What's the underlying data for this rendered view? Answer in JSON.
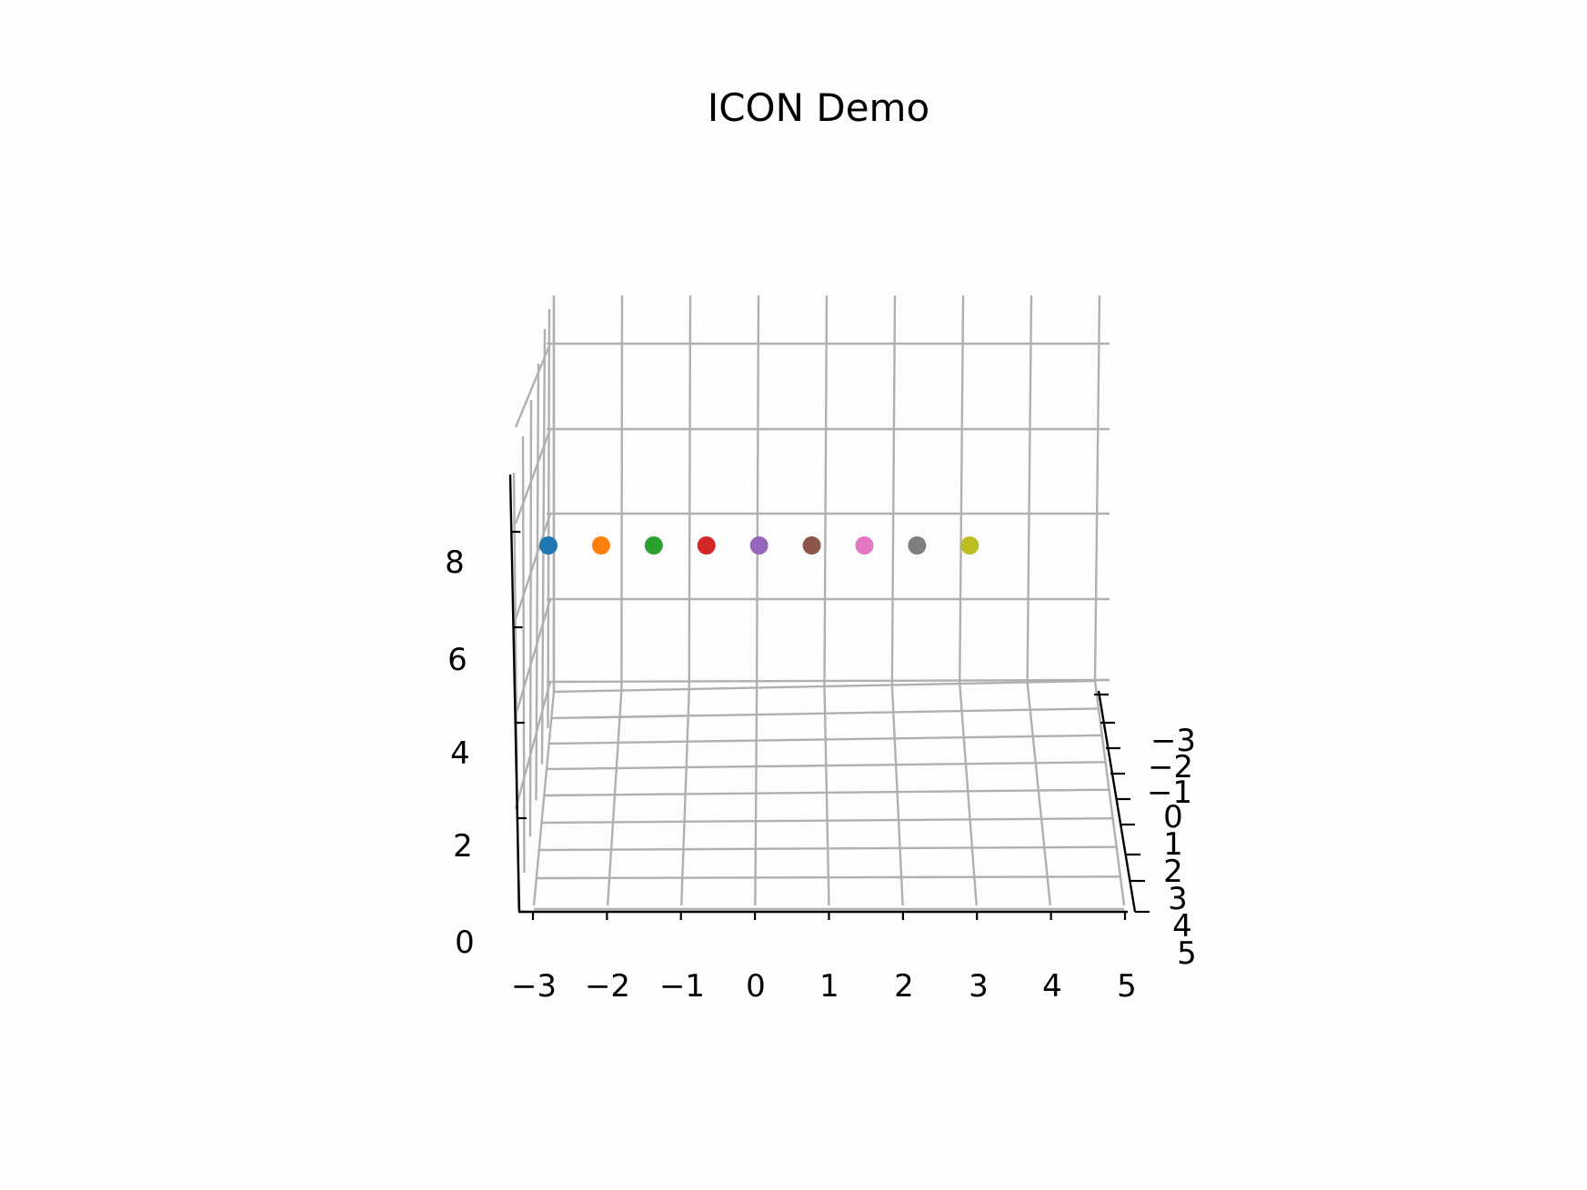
{
  "chart_data": {
    "type": "scatter",
    "projection": "3d",
    "title": "ICON Demo",
    "xlabel": "",
    "ylabel": "",
    "zlabel": "",
    "grid": true,
    "x_ticks": [
      "−3",
      "−2",
      "−1",
      "0",
      "1",
      "2",
      "3",
      "4",
      "5"
    ],
    "y_ticks": [
      "−3",
      "−2",
      "−1",
      "0",
      "1",
      "2",
      "3",
      "4",
      "5"
    ],
    "z_ticks": [
      "0",
      "2",
      "4",
      "6",
      "8"
    ],
    "points": [
      {
        "x": -3,
        "y": 0,
        "z": 8,
        "color": "#1f77b4"
      },
      {
        "x": -2,
        "y": 0,
        "z": 8,
        "color": "#ff7f0e"
      },
      {
        "x": -1,
        "y": 0,
        "z": 8,
        "color": "#2ca02c"
      },
      {
        "x": 0,
        "y": 0,
        "z": 8,
        "color": "#d62728"
      },
      {
        "x": 1,
        "y": 0,
        "z": 8,
        "color": "#9467bd"
      },
      {
        "x": 2,
        "y": 0,
        "z": 8,
        "color": "#8c564b"
      },
      {
        "x": 3,
        "y": 0,
        "z": 8,
        "color": "#e377c2"
      },
      {
        "x": 4,
        "y": 0,
        "z": 8,
        "color": "#7f7f7f"
      },
      {
        "x": 5,
        "y": 0,
        "z": 8,
        "color": "#bcbd22"
      }
    ]
  }
}
